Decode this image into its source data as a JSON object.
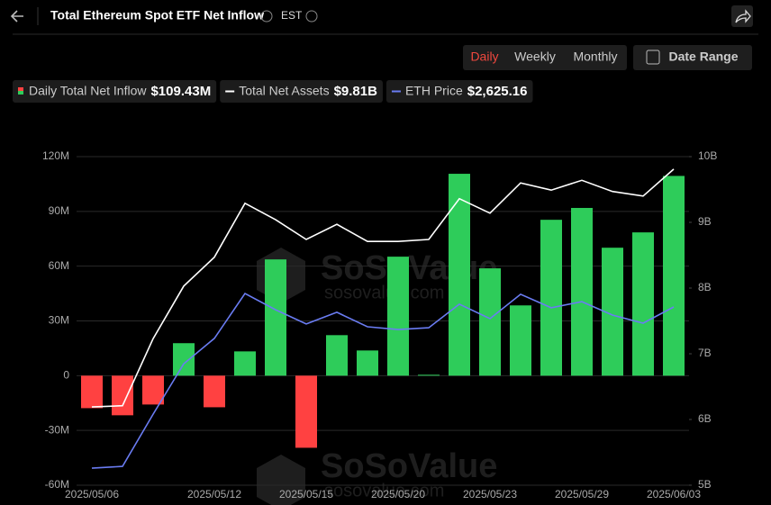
{
  "chart_data": {
    "type": "bar",
    "title": "Total Ethereum Spot ETF Net Inflow",
    "timezone": "EST",
    "buttons": [
      "Daily",
      "Weekly",
      "Monthly",
      "Date Range"
    ],
    "active_button": "Daily",
    "watermark": "SoSoValue",
    "watermark_url": "sosovalue.com",
    "categories": [
      "2025/05/06",
      null,
      null,
      null,
      "2025/05/12",
      null,
      null,
      "2025/05/15",
      null,
      null,
      "2025/05/20",
      null,
      null,
      "2025/05/23",
      null,
      null,
      "2025/05/29",
      null,
      null,
      "2025/06/03"
    ],
    "series": [
      {
        "name": "Daily Total Net Inflow",
        "legend_value": "$109.43M",
        "type": "bar",
        "color": "#2ecc5a",
        "negative_color": "#ff4141",
        "values": [
          -17.8,
          -21.7,
          -15.8,
          17.8,
          -17.3,
          13.3,
          63.7,
          -39.5,
          22.2,
          13.8,
          65.2,
          0.5,
          110.6,
          58.8,
          38.5,
          85.4,
          91.9,
          70.1,
          78.5,
          109.43
        ]
      },
      {
        "name": "Total Net Assets",
        "legend_value": "$9.81B",
        "type": "line",
        "color": "#ffffff",
        "axis": "y2",
        "values": [
          6.19,
          6.21,
          7.23,
          8.03,
          8.47,
          9.29,
          9.04,
          8.74,
          8.97,
          8.71,
          8.71,
          8.74,
          9.36,
          9.14,
          9.6,
          9.49,
          9.64,
          9.47,
          9.4,
          9.81
        ]
      },
      {
        "name": "ETH Price",
        "legend_value": "$2,625.16",
        "type": "line",
        "color": "#6a7cf2",
        "axis": "y3",
        "values": [
          1810,
          1819,
          2083,
          2338,
          2466,
          2693,
          2611,
          2539,
          2598,
          2525,
          2511,
          2520,
          2639,
          2566,
          2689,
          2621,
          2652,
          2584,
          2543,
          2625.16
        ]
      }
    ],
    "ylim": [
      -60,
      120
    ],
    "yticks": [
      {
        "value": -60,
        "label": "-60M"
      },
      {
        "value": -30,
        "label": "-30M"
      },
      0,
      {
        "value": 30,
        "label": "30M"
      },
      {
        "value": 60,
        "label": "60M"
      },
      {
        "value": 90,
        "label": "90M"
      },
      {
        "value": 120,
        "label": "120M"
      }
    ],
    "y2lim": [
      5,
      10
    ],
    "y2ticks": [
      {
        "value": 5,
        "label": "5B"
      },
      {
        "value": 6,
        "label": "6B"
      },
      {
        "value": 7,
        "label": "7B"
      },
      {
        "value": 8,
        "label": "8B"
      },
      {
        "value": 9,
        "label": "9B"
      },
      {
        "value": 10,
        "label": "10B"
      }
    ],
    "y3lim": [
      1724,
      3385
    ],
    "grid": true
  }
}
